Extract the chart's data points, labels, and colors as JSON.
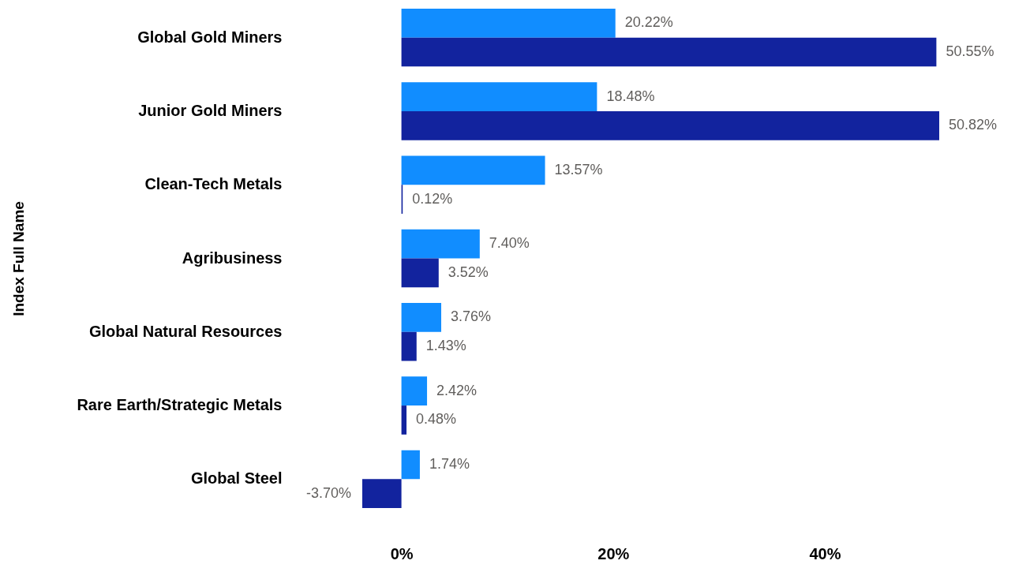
{
  "chart_data": {
    "type": "bar",
    "orientation": "horizontal",
    "ylabel": "Index Full Name",
    "categories": [
      "Global Gold Miners",
      "Junior Gold Miners",
      "Clean-Tech Metals",
      "Agribusiness",
      "Global Natural Resources",
      "Rare Earth/Strategic Metals",
      "Global Steel"
    ],
    "series": [
      {
        "color": "#118dff",
        "values": [
          20.22,
          18.48,
          13.57,
          7.4,
          3.76,
          2.42,
          1.74
        ],
        "value_labels": [
          "20.22%",
          "18.48%",
          "13.57%",
          "7.40%",
          "3.76%",
          "2.42%",
          "1.74%"
        ]
      },
      {
        "color": "#12239e",
        "values": [
          50.55,
          50.82,
          0.12,
          3.52,
          1.43,
          0.48,
          -3.7
        ],
        "value_labels": [
          "50.55%",
          "50.82%",
          "0.12%",
          "3.52%",
          "1.43%",
          "0.48%",
          "-3.70%"
        ]
      }
    ],
    "xlim": [
      -3.7,
      50.82
    ],
    "xticks": [
      {
        "value": 0,
        "label": "0%"
      },
      {
        "value": 20,
        "label": "20%"
      },
      {
        "value": 40,
        "label": "40%"
      }
    ],
    "grid": false
  }
}
